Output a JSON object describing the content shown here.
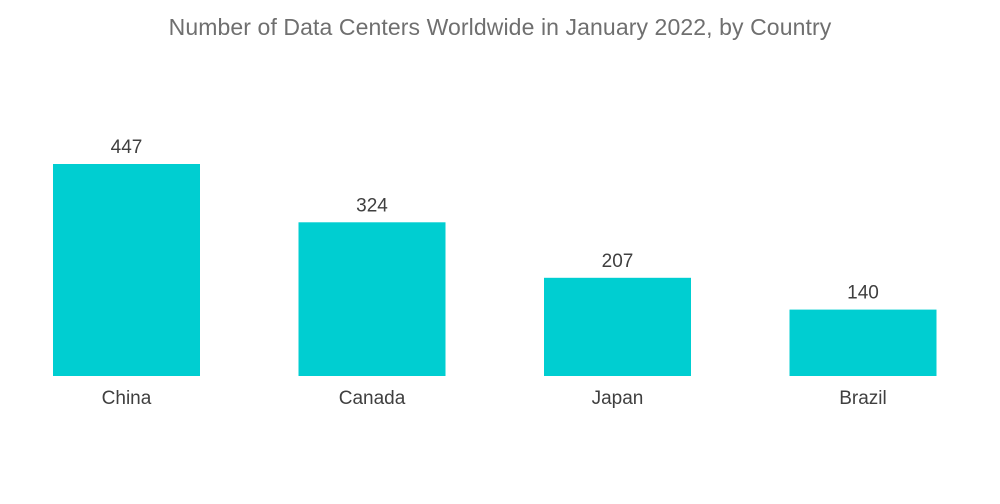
{
  "chart_data": {
    "type": "bar",
    "title": "Number of Data Centers Worldwide in January 2022, by Country",
    "categories": [
      "China",
      "Canada",
      "Japan",
      "Brazil"
    ],
    "values": [
      447,
      324,
      207,
      140
    ],
    "xlabel": "",
    "ylabel": "",
    "ylim": [
      0,
      447
    ],
    "grid": false,
    "legend": "none",
    "bar_color": "#00ced1",
    "data_labels": true
  }
}
